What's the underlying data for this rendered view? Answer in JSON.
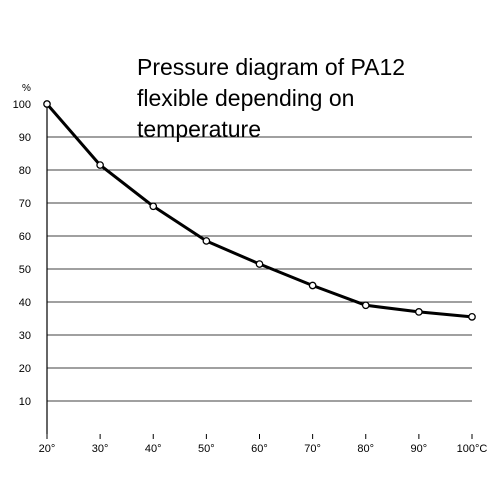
{
  "chart_data": {
    "type": "line",
    "title": "Pressure diagram of PA12\nflexible depending on\ntemperature",
    "ylabel": "%",
    "x": [
      20,
      30,
      40,
      50,
      60,
      70,
      80,
      90,
      100
    ],
    "x_tick_labels": [
      "20°",
      "30°",
      "40°",
      "50°",
      "60°",
      "70°",
      "80°",
      "90°",
      "100°C"
    ],
    "y_ticks": [
      10,
      20,
      30,
      40,
      50,
      60,
      70,
      80,
      90,
      100
    ],
    "series": [
      {
        "values": [
          100,
          81.5,
          69,
          58.5,
          51.5,
          45,
          39,
          37,
          35.5
        ]
      }
    ],
    "xlim": [
      20,
      100
    ],
    "ylim": [
      0,
      100
    ],
    "grid": "horizontal",
    "line_color": "#000000",
    "marker": "open-circle"
  }
}
